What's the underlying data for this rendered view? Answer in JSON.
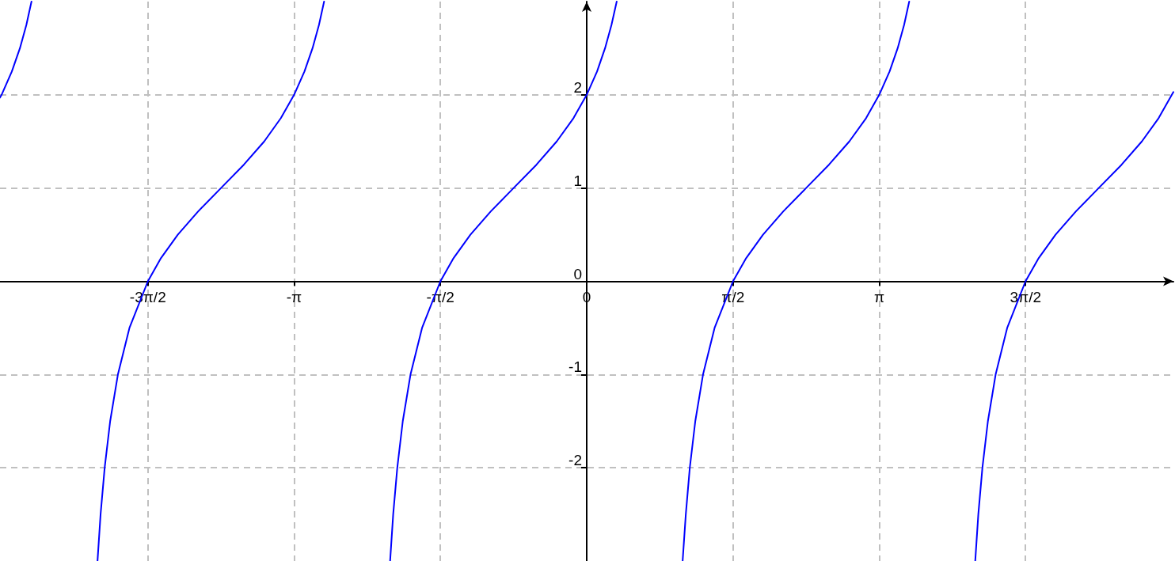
{
  "chart_data": {
    "type": "line",
    "xlim": [
      -6.3,
      6.3
    ],
    "ylim": [
      -3,
      3
    ],
    "xticks": [
      {
        "value": -4.712,
        "label": "-3π/2"
      },
      {
        "value": -3.142,
        "label": "-π"
      },
      {
        "value": -1.571,
        "label": "-π/2"
      },
      0,
      {
        "value": 1.571,
        "label": "π/2"
      },
      {
        "value": 3.142,
        "label": "π"
      },
      {
        "value": 4.712,
        "label": "3π/2"
      }
    ],
    "yticks": [
      -2,
      -1,
      0,
      1,
      2
    ],
    "grid": true,
    "marker": "none",
    "line_style": "solid",
    "series": [
      {
        "color": "#0000ff",
        "x": [
          -6.3,
          -6.283,
          -6.173,
          -6.086,
          -6.017,
          -5.962
        ],
        "values": [
          1.97,
          2,
          2.25,
          2.5,
          2.75,
          3
        ]
      },
      {
        "color": "#0000ff",
        "x": [
          -5.253,
          -5.22,
          -5.176,
          -5.117,
          -5.034,
          -4.91,
          -4.712,
          -4.571,
          -4.391,
          -4.172,
          -3.927,
          -3.682,
          -3.463,
          -3.284,
          -3.142,
          -3.031,
          -2.944,
          -2.875,
          -2.82
        ],
        "values": [
          -3,
          -2.5,
          -2,
          -1.5,
          -1,
          -0.5,
          0,
          0.25,
          0.5,
          0.75,
          1,
          1.25,
          1.5,
          1.75,
          2,
          2.25,
          2.5,
          2.75,
          3
        ]
      },
      {
        "color": "#0000ff",
        "x": [
          -2.111,
          -2.078,
          -2.034,
          -1.975,
          -1.892,
          -1.768,
          -1.571,
          -1.429,
          -1.249,
          -1.03,
          -0.785,
          -0.54,
          -0.322,
          -0.142,
          0,
          0.111,
          0.197,
          0.266,
          0.322
        ],
        "values": [
          -3,
          -2.5,
          -2,
          -1.5,
          -1,
          -0.5,
          0,
          0.25,
          0.5,
          0.75,
          1,
          1.25,
          1.5,
          1.75,
          2,
          2.25,
          2.5,
          2.75,
          3
        ]
      },
      {
        "color": "#0000ff",
        "x": [
          1.03,
          1.064,
          1.107,
          1.166,
          1.249,
          1.373,
          1.571,
          1.713,
          1.893,
          2.111,
          2.356,
          2.601,
          2.82,
          3,
          3.141,
          3.252,
          3.339,
          3.408,
          3.463
        ],
        "values": [
          -3,
          -2.5,
          -2,
          -1.5,
          -1,
          -0.5,
          0,
          0.25,
          0.5,
          0.75,
          1,
          1.25,
          1.5,
          1.75,
          2,
          2.25,
          2.5,
          2.75,
          3
        ]
      },
      {
        "color": "#0000ff",
        "x": [
          4.172,
          4.205,
          4.249,
          4.308,
          4.391,
          4.515,
          4.712,
          4.854,
          5.034,
          5.253,
          5.498,
          5.743,
          5.961,
          6.141,
          6.283,
          6.3
        ],
        "values": [
          -3,
          -2.5,
          -2,
          -1.5,
          -1,
          -0.5,
          0,
          0.25,
          0.5,
          0.75,
          1,
          1.25,
          1.5,
          1.75,
          2,
          2.03
        ]
      }
    ]
  }
}
